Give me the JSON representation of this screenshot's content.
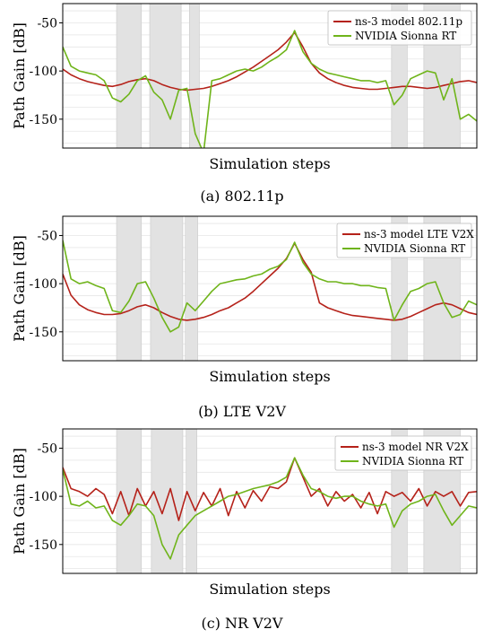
{
  "colors": {
    "ns3": "#b5221a",
    "sionna": "#6fb41a",
    "shade": "#e2e2e2",
    "grid": "#e6e6e6"
  },
  "chart_data": [
    {
      "type": "line",
      "caption": "(a) 802.11p",
      "xlabel": "Simulation steps",
      "ylabel": "Path Gain [dB]",
      "ylim": [
        -180,
        -30
      ],
      "yticks": [
        -50,
        -100,
        -150
      ],
      "x": [
        0,
        10,
        20,
        30,
        40,
        50,
        60,
        70,
        80,
        90,
        100,
        110,
        120,
        130,
        140,
        150,
        160,
        170,
        180,
        190,
        200,
        210,
        220,
        230,
        240,
        250,
        260,
        270,
        280,
        290,
        300,
        310,
        320,
        330,
        340,
        350,
        360,
        370,
        380,
        390,
        400,
        410,
        420,
        430,
        440,
        450,
        460,
        470,
        480,
        490,
        500
      ],
      "series": [
        {
          "name": "ns-3 model 802.11p",
          "values": [
            -98,
            -104,
            -108,
            -111,
            -113,
            -115,
            -116,
            -114,
            -111,
            -109,
            -108,
            -110,
            -114,
            -117,
            -119,
            -120,
            -119,
            -118,
            -116,
            -113,
            -110,
            -106,
            -101,
            -96,
            -90,
            -84,
            -78,
            -70,
            -60,
            -75,
            -92,
            -102,
            -108,
            -112,
            -115,
            -117,
            -118,
            -119,
            -119,
            -118,
            -117,
            -116,
            -116,
            -117,
            -118,
            -117,
            -115,
            -113,
            -111,
            -110,
            -112
          ]
        },
        {
          "name": "NVIDIA Sionna RT",
          "values": [
            -75,
            -95,
            -100,
            -102,
            -104,
            -110,
            -128,
            -132,
            -124,
            -110,
            -105,
            -122,
            -130,
            -150,
            -120,
            -118,
            -165,
            -185,
            -110,
            -108,
            -104,
            -100,
            -98,
            -100,
            -96,
            -90,
            -85,
            -78,
            -58,
            -80,
            -92,
            -98,
            -102,
            -104,
            -106,
            -108,
            -110,
            -110,
            -112,
            -110,
            -135,
            -125,
            -108,
            -104,
            -100,
            -102,
            -130,
            -108,
            -150,
            -145,
            -152
          ]
        }
      ],
      "shaded_x_ranges": [
        [
          65,
          95
        ],
        [
          105,
          143
        ],
        [
          153,
          165
        ],
        [
          397,
          416
        ],
        [
          436,
          480
        ]
      ],
      "legend": "top-right"
    },
    {
      "type": "line",
      "caption": "(b) LTE V2V",
      "xlabel": "Simulation steps",
      "ylabel": "Path Gain [dB]",
      "ylim": [
        -180,
        -30
      ],
      "yticks": [
        -50,
        -100,
        -150
      ],
      "x": [
        0,
        10,
        20,
        30,
        40,
        50,
        60,
        70,
        80,
        90,
        100,
        110,
        120,
        130,
        140,
        150,
        160,
        170,
        180,
        190,
        200,
        210,
        220,
        230,
        240,
        250,
        260,
        270,
        280,
        290,
        300,
        310,
        320,
        330,
        340,
        350,
        360,
        370,
        380,
        390,
        400,
        410,
        420,
        430,
        440,
        450,
        460,
        470,
        480,
        490,
        500
      ],
      "series": [
        {
          "name": "ns-3 model LTE V2X",
          "values": [
            -90,
            -112,
            -122,
            -127,
            -130,
            -132,
            -132,
            -131,
            -128,
            -124,
            -122,
            -125,
            -130,
            -134,
            -137,
            -138,
            -137,
            -135,
            -132,
            -128,
            -125,
            -120,
            -115,
            -108,
            -100,
            -92,
            -84,
            -74,
            -58,
            -75,
            -88,
            -120,
            -125,
            -128,
            -131,
            -133,
            -134,
            -135,
            -136,
            -137,
            -138,
            -137,
            -134,
            -130,
            -126,
            -122,
            -120,
            -122,
            -126,
            -130,
            -132
          ]
        },
        {
          "name": "NVIDIA Sionna RT",
          "values": [
            -55,
            -95,
            -100,
            -98,
            -102,
            -105,
            -128,
            -130,
            -118,
            -100,
            -98,
            -115,
            -135,
            -150,
            -145,
            -120,
            -128,
            -118,
            -108,
            -100,
            -98,
            -96,
            -95,
            -92,
            -90,
            -85,
            -82,
            -75,
            -57,
            -78,
            -90,
            -95,
            -98,
            -98,
            -100,
            -100,
            -102,
            -102,
            -104,
            -105,
            -138,
            -122,
            -108,
            -105,
            -100,
            -98,
            -120,
            -135,
            -132,
            -118,
            -122
          ]
        }
      ],
      "shaded_x_ranges": [
        [
          65,
          95
        ],
        [
          106,
          145
        ],
        [
          148,
          163
        ],
        [
          397,
          416
        ],
        [
          436,
          480
        ]
      ],
      "legend": "top-right"
    },
    {
      "type": "line",
      "caption": "(c) NR V2V",
      "xlabel": "Simulation steps",
      "ylabel": "Path Gain [dB]",
      "ylim": [
        -180,
        -30
      ],
      "yticks": [
        -50,
        -100,
        -150
      ],
      "x": [
        0,
        10,
        20,
        30,
        40,
        50,
        60,
        70,
        80,
        90,
        100,
        110,
        120,
        130,
        140,
        150,
        160,
        170,
        180,
        190,
        200,
        210,
        220,
        230,
        240,
        250,
        260,
        270,
        280,
        290,
        300,
        310,
        320,
        330,
        340,
        350,
        360,
        370,
        380,
        390,
        400,
        410,
        420,
        430,
        440,
        450,
        460,
        470,
        480,
        490,
        500
      ],
      "series": [
        {
          "name": "ns-3 model NR V2X",
          "values": [
            -70,
            -92,
            -95,
            -100,
            -92,
            -98,
            -118,
            -95,
            -120,
            -92,
            -110,
            -95,
            -118,
            -92,
            -125,
            -95,
            -115,
            -96,
            -110,
            -92,
            -120,
            -95,
            -112,
            -94,
            -105,
            -90,
            -92,
            -85,
            -60,
            -80,
            -100,
            -92,
            -110,
            -95,
            -105,
            -98,
            -112,
            -96,
            -118,
            -95,
            -100,
            -96,
            -105,
            -92,
            -110,
            -95,
            -100,
            -95,
            -110,
            -96,
            -95
          ]
        },
        {
          "name": "NVIDIA Sionna RT",
          "values": [
            -72,
            -108,
            -110,
            -105,
            -112,
            -110,
            -125,
            -130,
            -120,
            -108,
            -110,
            -120,
            -150,
            -165,
            -140,
            -130,
            -120,
            -115,
            -110,
            -105,
            -100,
            -98,
            -95,
            -92,
            -90,
            -88,
            -85,
            -80,
            -60,
            -78,
            -92,
            -95,
            -100,
            -102,
            -100,
            -100,
            -105,
            -108,
            -110,
            -108,
            -132,
            -115,
            -108,
            -105,
            -100,
            -98,
            -115,
            -130,
            -120,
            -110,
            -112
          ]
        }
      ],
      "shaded_x_ranges": [
        [
          65,
          95
        ],
        [
          107,
          145
        ],
        [
          149,
          162
        ],
        [
          397,
          416
        ],
        [
          436,
          480
        ]
      ],
      "legend": "top-right"
    }
  ]
}
